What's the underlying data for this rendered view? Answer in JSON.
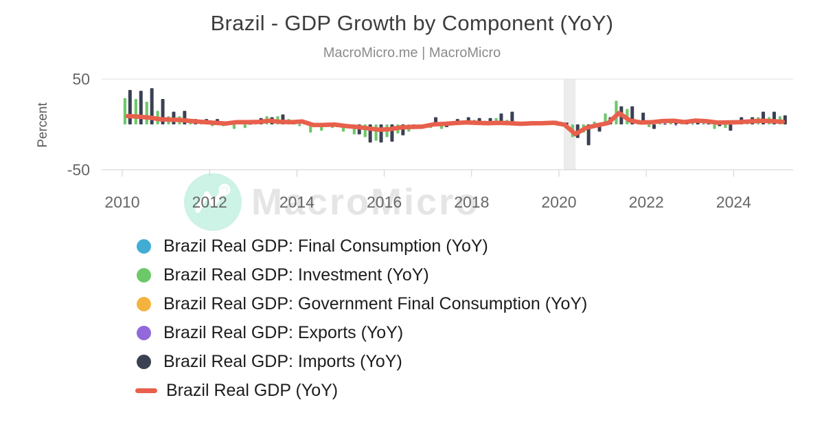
{
  "header": {
    "title": "Brazil - GDP Growth by Component (YoY)",
    "subtitle": "MacroMicro.me | MacroMicro"
  },
  "watermark": {
    "brand": "MacroMicro",
    "circle_color": "#cdf2e6",
    "logo_color": "#ffffff",
    "text_color": "#e5e5e5"
  },
  "chart_data": {
    "type": "bar+line",
    "title": "Brazil - GDP Growth by Component (YoY)",
    "ylabel": "Percent",
    "ylim": [
      -50,
      50
    ],
    "yticks": [
      50,
      -50
    ],
    "xticks": [
      2010,
      2012,
      2014,
      2016,
      2018,
      2020,
      2022,
      2024
    ],
    "x_start_year": 2010,
    "x_frequency": "quarterly",
    "x_end": "2025 Q1",
    "grid_color": "#e1e1e1",
    "axis_color": "#cfcfcf",
    "recession_band": {
      "from": 2020.11,
      "to": 2020.38,
      "color": "#ececec"
    },
    "legend_position": "bottom-left",
    "series": [
      {
        "id": "final-consumption",
        "name": "Brazil Real GDP: Final Consumption (YoY)",
        "type": "column",
        "color": "#41add5",
        "values": [
          8.3,
          7.7,
          6.8,
          5.1,
          4.7,
          4.2,
          3.2,
          2.3,
          1.5,
          0.9,
          2.3,
          2.3,
          2.4,
          3.6,
          2.5,
          2.2,
          2.9,
          -0.6,
          -0.5,
          -0.2,
          -1.6,
          -2.5,
          -3.9,
          -5.2,
          -4.8,
          -3.1,
          -2.4,
          -2.2,
          0.1,
          0.5,
          1.4,
          2.0,
          1.5,
          1.2,
          1.5,
          1.2,
          0.6,
          1.1,
          1.2,
          1.6,
          -0.2,
          -9.6,
          -3.3,
          -0.9,
          1.4,
          11.3,
          3.9,
          1.9,
          2.2,
          5.2,
          3.6,
          2.3,
          3.8,
          3.2,
          2.7,
          2.0,
          2.3,
          3.0,
          3.6,
          3.2,
          2.6
        ]
      },
      {
        "id": "investment",
        "name": "Brazil Real GDP: Investment (YoY)",
        "type": "column",
        "color": "#6cc96a",
        "values": [
          29,
          28,
          25,
          15,
          9,
          9,
          4,
          3,
          -2,
          -2,
          -5,
          -4,
          3,
          9,
          9,
          6,
          -2,
          -9,
          -7,
          -4,
          -8,
          -11,
          -14,
          -18,
          -14,
          -10,
          -8,
          -5,
          -4,
          -5,
          0.5,
          4,
          5,
          4,
          7,
          5,
          1,
          3,
          3,
          3,
          0.5,
          -14,
          -9,
          3,
          12,
          26,
          17,
          4,
          -3,
          1,
          5,
          3,
          0.5,
          0.5,
          -5,
          -4,
          2,
          5,
          8,
          8,
          9
        ]
      },
      {
        "id": "government-consumption",
        "name": "Brazil Real GDP: Government Final Consumption (YoY)",
        "type": "column",
        "color": "#f3b33e",
        "values": [
          6.9,
          6.4,
          5.6,
          4.3,
          3.9,
          3.5,
          2.6,
          2.0,
          1.3,
          0.8,
          1.9,
          1.9,
          2.0,
          3.0,
          2.1,
          1.8,
          2.4,
          -0.5,
          -0.5,
          -0.2,
          -1.4,
          -2.1,
          -3.2,
          -4.4,
          -4.0,
          -2.6,
          -2.0,
          -1.8,
          0.0,
          0.5,
          1.1,
          1.7,
          1.3,
          1.0,
          1.3,
          1.0,
          0.5,
          0.9,
          1.0,
          1.4,
          -0.2,
          -8.0,
          -2.8,
          -0.8,
          1.1,
          9.4,
          3.2,
          1.6,
          1.8,
          2.8,
          3.0,
          2.0,
          3.2,
          2.6,
          1.5,
          1.7,
          1.9,
          2.5,
          3.0,
          2.7,
          2.2
        ]
      },
      {
        "id": "exports",
        "name": "Brazil Real GDP: Exports (YoY)",
        "type": "column",
        "color": "#9169da",
        "values": [
          7.8,
          7.2,
          6.4,
          4.8,
          4.4,
          4.0,
          3.0,
          2.2,
          1.4,
          0.9,
          2.1,
          2.1,
          2.3,
          3.4,
          2.4,
          2.0,
          2.7,
          -0.6,
          -0.5,
          -0.2,
          -1.5,
          -2.4,
          -3.7,
          -4.9,
          -4.5,
          -2.9,
          -2.3,
          -2.0,
          0.0,
          0.5,
          1.3,
          1.9,
          1.4,
          1.1,
          1.4,
          1.1,
          0.6,
          1.0,
          1.1,
          1.5,
          -0.2,
          -9.1,
          -3.1,
          -0.9,
          1.3,
          10.6,
          3.7,
          1.8,
          4.5,
          3.1,
          -1.5,
          2.2,
          3.6,
          5.5,
          1.7,
          1.9,
          2.1,
          2.8,
          3.4,
          3.1,
          2.5
        ]
      },
      {
        "id": "imports",
        "name": "Brazil Real GDP: Imports (YoY)",
        "type": "column",
        "color": "#3b4053",
        "values": [
          38,
          37,
          40,
          28,
          14,
          15,
          6,
          6,
          6,
          1,
          1,
          0.5,
          7,
          8,
          11,
          4,
          2,
          -2,
          -1,
          -3,
          -2,
          -11,
          -20,
          -20,
          -19,
          -12,
          -5,
          -4,
          8,
          -3,
          6,
          8,
          7,
          7,
          12,
          14,
          0.5,
          2,
          3,
          4,
          2,
          -15,
          -23,
          -8,
          8,
          20,
          20,
          13,
          -5,
          0.5,
          5,
          2,
          2,
          2,
          -2,
          -7,
          8,
          8,
          14,
          14,
          10
        ]
      },
      {
        "id": "real-gdp",
        "name": "Brazil Real GDP (YoY)",
        "type": "line",
        "color": "#e8604c",
        "values": [
          9.2,
          8.5,
          7.5,
          5.7,
          5.2,
          4.7,
          3.5,
          2.6,
          1.7,
          1.0,
          2.5,
          2.5,
          2.7,
          4.0,
          2.8,
          2.4,
          3.2,
          -0.7,
          -0.6,
          -0.2,
          -1.8,
          -2.8,
          -4.3,
          -5.8,
          -5.3,
          -3.4,
          -2.7,
          -2.4,
          0.0,
          0.6,
          1.5,
          2.2,
          1.7,
          1.3,
          1.7,
          1.3,
          0.7,
          1.2,
          1.3,
          1.8,
          -0.2,
          -10.7,
          -3.7,
          -1.0,
          1.5,
          12.5,
          4.3,
          2.1,
          2.4,
          3.7,
          4.0,
          2.6,
          4.2,
          3.5,
          2.0,
          2.2,
          2.5,
          3.3,
          4.0,
          3.6,
          2.9
        ]
      }
    ]
  },
  "legend": {
    "items": [
      {
        "label": "Brazil Real GDP: Final Consumption (YoY)",
        "color": "#41add5",
        "marker": "circle"
      },
      {
        "label": "Brazil Real GDP: Investment (YoY)",
        "color": "#6cc96a",
        "marker": "circle"
      },
      {
        "label": "Brazil Real GDP: Government Final Consumption (YoY)",
        "color": "#f3b33e",
        "marker": "circle"
      },
      {
        "label": "Brazil Real GDP: Exports (YoY)",
        "color": "#9169da",
        "marker": "circle"
      },
      {
        "label": "Brazil Real GDP: Imports (YoY)",
        "color": "#3b4053",
        "marker": "circle"
      },
      {
        "label": "Brazil Real GDP (YoY)",
        "color": "#e8604c",
        "marker": "line"
      }
    ]
  }
}
